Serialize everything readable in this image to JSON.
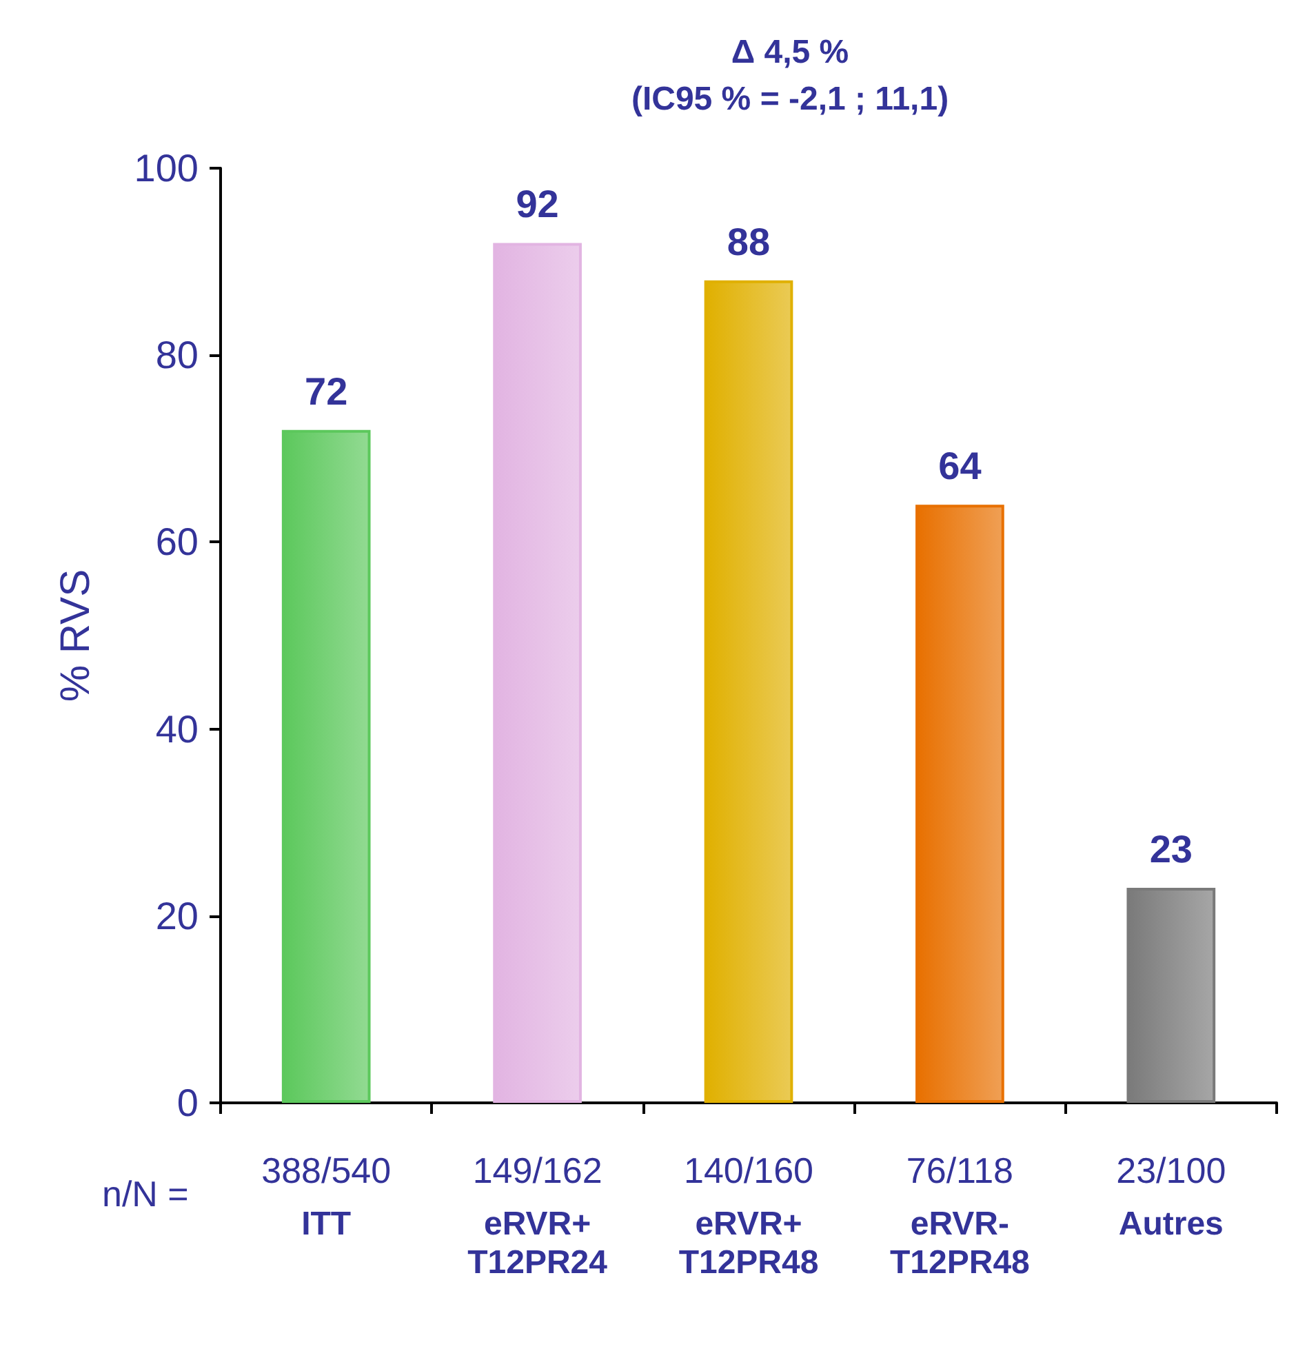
{
  "chart_data": {
    "type": "bar",
    "title": "Δ 4,5 %\n(IC95 % = -2,1 ; 11,1)",
    "ylabel": "% RVS",
    "categories": [
      "ITT",
      "eRVR+\nT12PR24",
      "eRVR+\nT12PR48",
      "eRVR-\nT12PR48",
      "Autres"
    ],
    "values": [
      72,
      92,
      88,
      64,
      23
    ],
    "colors": [
      "#5cc85c",
      "#e2b4e2",
      "#e0b000",
      "#e87000",
      "#7a7a7a"
    ],
    "annotations": [
      "n/N =",
      "388/540",
      "149/162",
      "140/160",
      "76/118",
      "23/100"
    ],
    "ylim": [
      0,
      100
    ],
    "yticks": [
      0,
      20,
      40,
      60,
      80,
      100
    ],
    "data_labels": true,
    "grid": false
  }
}
